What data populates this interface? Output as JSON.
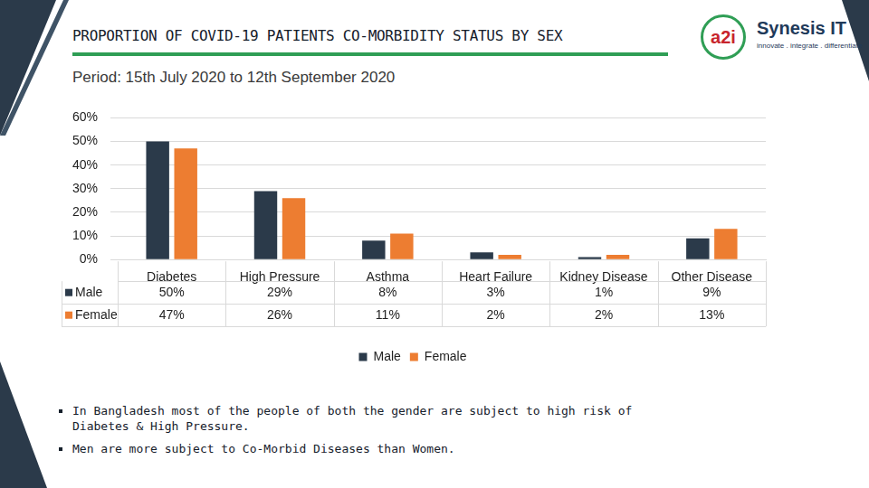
{
  "chart_data": {
    "type": "bar",
    "title": "PROPORTION OF COVID-19 PATIENTS CO-MORBIDITY STATUS BY SEX",
    "subtitle": "Period: 15th July 2020 to 12th September 2020",
    "categories": [
      "Diabetes",
      "High Pressure",
      "Asthma",
      "Heart Failure",
      "Kidney Disease",
      "Other Disease"
    ],
    "series": [
      {
        "name": "Male",
        "color": "#2b3a4a",
        "values": [
          50,
          29,
          8,
          3,
          1,
          9
        ],
        "value_labels": [
          "50%",
          "29%",
          "8%",
          "3%",
          "1%",
          "9%"
        ]
      },
      {
        "name": "Female",
        "color": "#ed7d31",
        "values": [
          47,
          26,
          11,
          2,
          2,
          13
        ],
        "value_labels": [
          "47%",
          "26%",
          "11%",
          "2%",
          "2%",
          "13%"
        ]
      }
    ],
    "ylim": [
      0,
      60
    ],
    "yticks": [
      {
        "value": 0,
        "label": "0%"
      },
      {
        "value": 10,
        "label": "10%"
      },
      {
        "value": 20,
        "label": "20%"
      },
      {
        "value": 30,
        "label": "30%"
      },
      {
        "value": 40,
        "label": "40%"
      },
      {
        "value": 50,
        "label": "50%"
      },
      {
        "value": 60,
        "label": "60%"
      }
    ],
    "grid": true,
    "legend": "bottom"
  },
  "logos": [
    "a2i",
    "Synesis IT"
  ],
  "tagline": "innovate . integrate . differentiate",
  "notes": [
    "In Bangladesh most of the people of both the gender are subject to high risk of Diabetes & High Pressure.",
    "Men are more subject to Co-Morbid Diseases than Women."
  ]
}
